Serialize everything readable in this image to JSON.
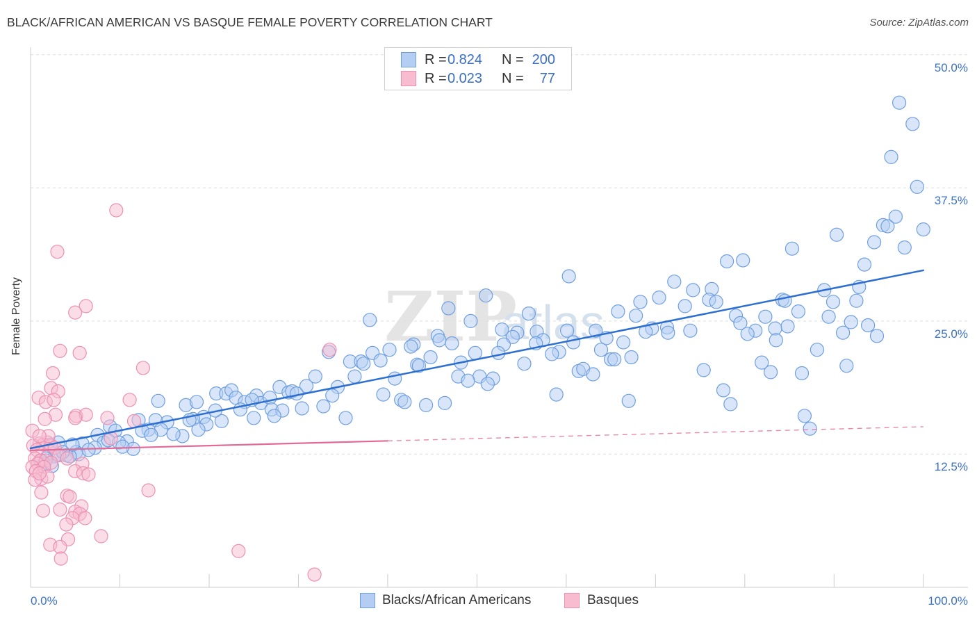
{
  "source": "Source: ZipAtlas.com",
  "watermark": {
    "zip": "ZIP",
    "atlas": "atlas"
  },
  "colors": {
    "blue_fill": "#b3cdf3",
    "blue_stroke": "#6f9fe0",
    "blue_line": "#2c6fd1",
    "pink_fill": "#f7bcd0",
    "pink_stroke": "#ec90b2",
    "pink_line": "#e26a96",
    "tick_label": "#3d72c6",
    "legend_value": "#3a6fc4"
  },
  "legend_top": {
    "rows": [
      {
        "r_label": "R =",
        "r_value": "0.824",
        "n_label": "N =",
        "n_value": "200"
      },
      {
        "r_label": "R =",
        "r_value": "0.023",
        "n_label": "N =",
        "n_value": "77"
      }
    ]
  },
  "chart_data": {
    "type": "scatter",
    "title": "BLACK/AFRICAN AMERICAN VS BASQUE FEMALE POVERTY CORRELATION CHART",
    "ylabel": "Female Poverty",
    "x_range": [
      0,
      105
    ],
    "y_range": [
      0,
      50.7
    ],
    "x_ticks": [
      0,
      10,
      20,
      30,
      40,
      50,
      60,
      70,
      80,
      90,
      100
    ],
    "x_tick_labels": [
      "0.0%",
      "100.0%"
    ],
    "y_gridlines": [
      12.5,
      25,
      37.5,
      50
    ],
    "y_tick_labels": [
      "50.0%",
      "37.5%",
      "25.0%",
      "12.5%"
    ],
    "grid": true,
    "legend_position": "top-center",
    "series": [
      {
        "name": "Blacks/African Americans",
        "trend": {
          "start": [
            0,
            13.05
          ],
          "end": [
            100,
            29.76
          ]
        },
        "points": [
          [
            97.3,
            45.5
          ],
          [
            98.8,
            43.5
          ],
          [
            96.4,
            40.4
          ],
          [
            99.3,
            37.6
          ],
          [
            96.9,
            34.8
          ],
          [
            95.5,
            34.0
          ],
          [
            100.0,
            33.6
          ],
          [
            96.0,
            33.9
          ],
          [
            90.3,
            33.1
          ],
          [
            94.5,
            32.4
          ],
          [
            85.3,
            31.8
          ],
          [
            97.9,
            31.9
          ],
          [
            93.4,
            30.3
          ],
          [
            78.0,
            30.6
          ],
          [
            79.8,
            30.7
          ],
          [
            60.3,
            29.2
          ],
          [
            72.1,
            28.7
          ],
          [
            88.9,
            27.9
          ],
          [
            74.2,
            27.9
          ],
          [
            76.3,
            28.0
          ],
          [
            92.8,
            28.2
          ],
          [
            70.4,
            27.2
          ],
          [
            76.0,
            27.0
          ],
          [
            76.8,
            26.8
          ],
          [
            68.3,
            26.8
          ],
          [
            73.3,
            26.4
          ],
          [
            84.2,
            27.0
          ],
          [
            84.5,
            26.9
          ],
          [
            89.9,
            26.8
          ],
          [
            92.5,
            26.9
          ],
          [
            51.0,
            27.4
          ],
          [
            46.8,
            26.2
          ],
          [
            65.8,
            25.9
          ],
          [
            55.8,
            25.7
          ],
          [
            86.0,
            25.9
          ],
          [
            79.0,
            25.5
          ],
          [
            89.4,
            25.4
          ],
          [
            82.3,
            25.4
          ],
          [
            67.8,
            25.5
          ],
          [
            38.0,
            25.1
          ],
          [
            49.3,
            25.0
          ],
          [
            79.5,
            24.8
          ],
          [
            91.9,
            24.9
          ],
          [
            84.8,
            24.5
          ],
          [
            93.8,
            24.6
          ],
          [
            52.8,
            24.2
          ],
          [
            54.5,
            23.9
          ],
          [
            56.7,
            24.0
          ],
          [
            71.3,
            24.4
          ],
          [
            69.6,
            24.3
          ],
          [
            63.3,
            24.1
          ],
          [
            60.1,
            24.1
          ],
          [
            64.5,
            23.4
          ],
          [
            71.4,
            23.9
          ],
          [
            68.9,
            24.0
          ],
          [
            73.9,
            24.1
          ],
          [
            91.0,
            23.9
          ],
          [
            81.2,
            24.1
          ],
          [
            83.4,
            24.3
          ],
          [
            80.3,
            23.8
          ],
          [
            94.8,
            23.6
          ],
          [
            54.0,
            23.5
          ],
          [
            45.6,
            23.6
          ],
          [
            57.4,
            23.2
          ],
          [
            56.6,
            22.9
          ],
          [
            45.8,
            23.2
          ],
          [
            53.0,
            22.8
          ],
          [
            42.9,
            22.8
          ],
          [
            42.6,
            22.6
          ],
          [
            47.2,
            22.9
          ],
          [
            60.8,
            23.0
          ],
          [
            66.4,
            23.0
          ],
          [
            83.5,
            23.2
          ],
          [
            38.3,
            22.0
          ],
          [
            40.2,
            22.3
          ],
          [
            49.8,
            22.0
          ],
          [
            52.4,
            22.0
          ],
          [
            63.9,
            22.3
          ],
          [
            59.2,
            22.1
          ],
          [
            33.4,
            22.1
          ],
          [
            35.8,
            21.2
          ],
          [
            37.0,
            21.2
          ],
          [
            37.3,
            21.0
          ],
          [
            39.2,
            21.3
          ],
          [
            43.3,
            20.9
          ],
          [
            44.8,
            21.6
          ],
          [
            58.4,
            21.9
          ],
          [
            67.3,
            21.6
          ],
          [
            65.0,
            21.4
          ],
          [
            65.4,
            21.4
          ],
          [
            88.1,
            22.3
          ],
          [
            81.9,
            21.1
          ],
          [
            91.4,
            20.8
          ],
          [
            75.4,
            20.4
          ],
          [
            82.9,
            20.2
          ],
          [
            55.3,
            21.0
          ],
          [
            61.4,
            20.3
          ],
          [
            61.9,
            20.5
          ],
          [
            63.0,
            20.0
          ],
          [
            48.2,
            21.1
          ],
          [
            43.5,
            20.8
          ],
          [
            40.8,
            19.6
          ],
          [
            36.3,
            19.8
          ],
          [
            31.9,
            19.8
          ],
          [
            47.9,
            19.8
          ],
          [
            50.3,
            19.8
          ],
          [
            51.8,
            19.6
          ],
          [
            51.2,
            19.1
          ],
          [
            49.0,
            19.4
          ],
          [
            86.4,
            20.1
          ],
          [
            77.6,
            18.5
          ],
          [
            34.4,
            18.8
          ],
          [
            30.9,
            18.9
          ],
          [
            20.8,
            18.2
          ],
          [
            21.9,
            18.2
          ],
          [
            22.5,
            18.5
          ],
          [
            27.9,
            18.8
          ],
          [
            28.9,
            18.3
          ],
          [
            29.3,
            18.4
          ],
          [
            29.8,
            18.2
          ],
          [
            39.5,
            18.1
          ],
          [
            58.9,
            18.1
          ],
          [
            25.3,
            18.0
          ],
          [
            23.0,
            17.8
          ],
          [
            24.0,
            17.4
          ],
          [
            25.8,
            17.3
          ],
          [
            26.8,
            17.8
          ],
          [
            32.8,
            17.0
          ],
          [
            30.4,
            16.8
          ],
          [
            33.8,
            18.0
          ],
          [
            41.5,
            17.6
          ],
          [
            41.9,
            17.4
          ],
          [
            44.3,
            17.1
          ],
          [
            46.4,
            17.3
          ],
          [
            67.0,
            17.5
          ],
          [
            78.4,
            17.2
          ],
          [
            14.3,
            17.5
          ],
          [
            17.4,
            17.1
          ],
          [
            18.6,
            17.4
          ],
          [
            23.5,
            16.7
          ],
          [
            27.0,
            16.7
          ],
          [
            28.2,
            16.6
          ],
          [
            25.0,
            15.9
          ],
          [
            21.4,
            15.6
          ],
          [
            19.4,
            16.0
          ],
          [
            18.2,
            15.8
          ],
          [
            20.7,
            16.6
          ],
          [
            15.3,
            15.5
          ],
          [
            17.8,
            15.7
          ],
          [
            14.0,
            15.7
          ],
          [
            12.1,
            15.7
          ],
          [
            14.6,
            14.8
          ],
          [
            19.7,
            15.3
          ],
          [
            17.0,
            14.2
          ],
          [
            18.8,
            14.8
          ],
          [
            13.2,
            14.8
          ],
          [
            16.0,
            14.4
          ],
          [
            12.5,
            14.7
          ],
          [
            13.5,
            14.3
          ],
          [
            8.9,
            15.1
          ],
          [
            9.5,
            14.7
          ],
          [
            7.5,
            14.3
          ],
          [
            10.8,
            13.7
          ],
          [
            8.2,
            13.6
          ],
          [
            8.7,
            13.8
          ],
          [
            5.8,
            13.5
          ],
          [
            9.9,
            13.6
          ],
          [
            11.5,
            13.0
          ],
          [
            10.3,
            13.2
          ],
          [
            7.2,
            13.1
          ],
          [
            2.2,
            13.4
          ],
          [
            3.1,
            13.6
          ],
          [
            5.1,
            12.7
          ],
          [
            5.4,
            12.5
          ],
          [
            4.0,
            12.4
          ],
          [
            3.0,
            12.4
          ],
          [
            2.7,
            12.3
          ],
          [
            4.4,
            12.3
          ],
          [
            1.7,
            12.1
          ],
          [
            1.2,
            11.9
          ],
          [
            1.5,
            11.6
          ],
          [
            2.4,
            11.4
          ],
          [
            35.3,
            15.9
          ],
          [
            27.3,
            16.1
          ],
          [
            86.7,
            16.1
          ],
          [
            87.3,
            14.9
          ],
          [
            24.8,
            17.6
          ],
          [
            6.5,
            12.9
          ],
          [
            4.7,
            13.4
          ],
          [
            3.6,
            12.7
          ]
        ]
      },
      {
        "name": "Basques",
        "trend": {
          "start": [
            0,
            12.86
          ],
          "end": [
            100,
            15.08
          ],
          "solid_until_x": 40
        },
        "points": [
          [
            9.6,
            35.4
          ],
          [
            3.0,
            31.5
          ],
          [
            6.2,
            26.4
          ],
          [
            5.0,
            25.8
          ],
          [
            3.3,
            22.2
          ],
          [
            5.5,
            22.0
          ],
          [
            33.5,
            22.3
          ],
          [
            12.6,
            20.6
          ],
          [
            2.5,
            20.1
          ],
          [
            2.3,
            18.7
          ],
          [
            3.1,
            18.4
          ],
          [
            0.9,
            17.8
          ],
          [
            1.7,
            17.4
          ],
          [
            2.6,
            17.6
          ],
          [
            11.1,
            17.6
          ],
          [
            2.8,
            16.2
          ],
          [
            1.6,
            15.8
          ],
          [
            5.1,
            16.1
          ],
          [
            6.2,
            16.2
          ],
          [
            8.6,
            15.9
          ],
          [
            11.6,
            15.6
          ],
          [
            5.0,
            15.9
          ],
          [
            0.2,
            14.7
          ],
          [
            9.0,
            14.0
          ],
          [
            1.9,
            13.6
          ],
          [
            1.0,
            13.5
          ],
          [
            1.4,
            13.4
          ],
          [
            2.3,
            13.3
          ],
          [
            0.3,
            13.3
          ],
          [
            2.7,
            13.1
          ],
          [
            0.7,
            12.9
          ],
          [
            3.2,
            12.4
          ],
          [
            4.1,
            12.1
          ],
          [
            0.5,
            12.1
          ],
          [
            1.1,
            11.9
          ],
          [
            1.7,
            11.9
          ],
          [
            2.3,
            11.7
          ],
          [
            0.8,
            11.6
          ],
          [
            0.2,
            11.3
          ],
          [
            1.5,
            11.3
          ],
          [
            5.8,
            11.6
          ],
          [
            0.6,
            10.9
          ],
          [
            5.0,
            10.9
          ],
          [
            5.9,
            10.7
          ],
          [
            6.5,
            10.6
          ],
          [
            1.2,
            10.2
          ],
          [
            1.9,
            10.4
          ],
          [
            0.5,
            10.1
          ],
          [
            1.0,
            10.7
          ],
          [
            1.2,
            8.9
          ],
          [
            4.1,
            8.6
          ],
          [
            4.4,
            8.5
          ],
          [
            13.2,
            9.1
          ],
          [
            5.7,
            7.6
          ],
          [
            3.3,
            7.3
          ],
          [
            1.4,
            7.2
          ],
          [
            5.0,
            7.1
          ],
          [
            5.5,
            6.9
          ],
          [
            4.7,
            6.5
          ],
          [
            6.1,
            6.5
          ],
          [
            4.0,
            5.9
          ],
          [
            7.9,
            4.8
          ],
          [
            4.2,
            4.5
          ],
          [
            2.2,
            4.0
          ],
          [
            3.3,
            3.8
          ],
          [
            23.3,
            3.4
          ],
          [
            3.4,
            2.7
          ],
          [
            31.8,
            1.2
          ],
          [
            2.0,
            14.2
          ],
          [
            1.0,
            14.2
          ]
        ]
      }
    ]
  }
}
